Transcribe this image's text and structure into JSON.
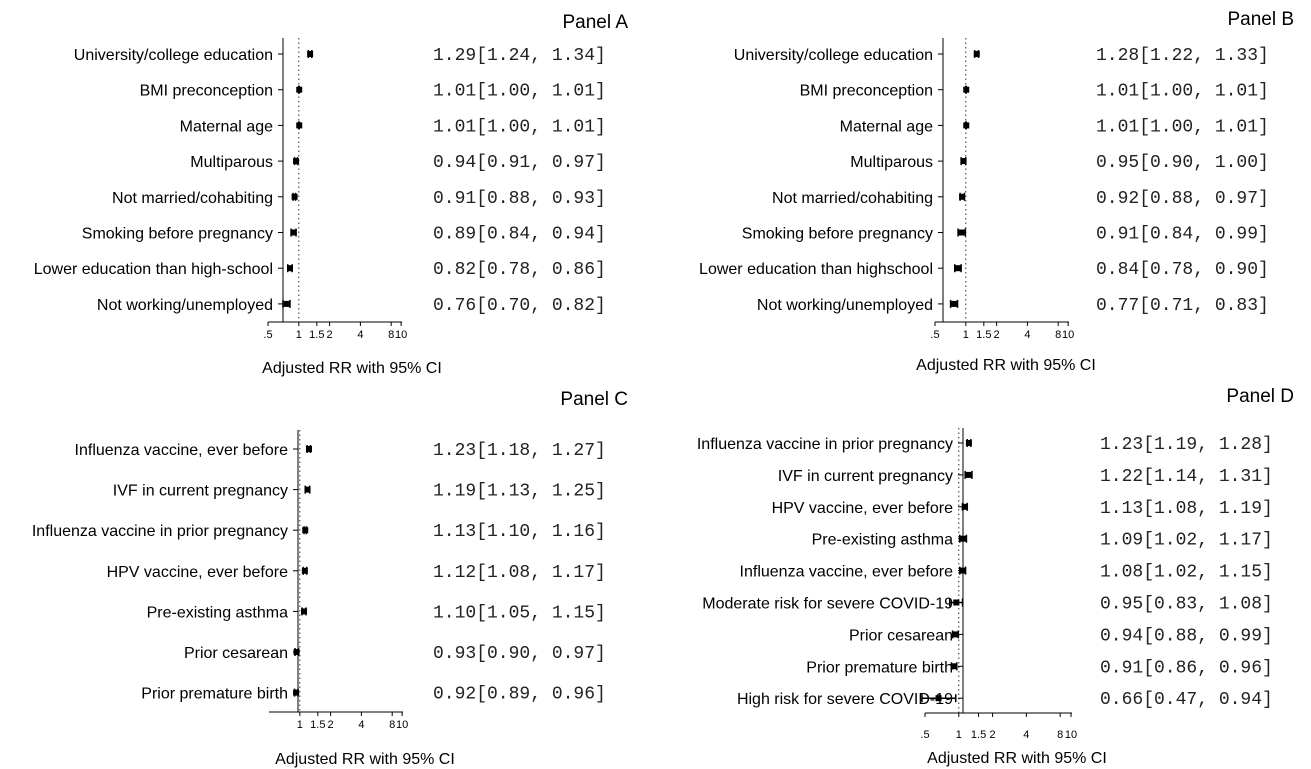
{
  "chart_data": [
    {
      "type": "forest",
      "title": "Panel A",
      "xlabel": "Adjusted RR with 95% CI",
      "xscale": "log",
      "xticks": [
        0.5,
        1,
        1.5,
        2,
        4,
        8,
        10
      ],
      "xtick_labels": [
        ".5",
        "1",
        "1.5",
        "2",
        "4",
        "8",
        "10"
      ],
      "reference_line": 1,
      "rows": [
        {
          "label": "University/college education",
          "rr": 1.29,
          "lo": 1.24,
          "hi": 1.34,
          "text": "1.29[1.24, 1.34]"
        },
        {
          "label": "BMI preconception",
          "rr": 1.01,
          "lo": 1.0,
          "hi": 1.01,
          "text": "1.01[1.00, 1.01]"
        },
        {
          "label": "Maternal age",
          "rr": 1.01,
          "lo": 1.0,
          "hi": 1.01,
          "text": "1.01[1.00, 1.01]"
        },
        {
          "label": "Multiparous",
          "rr": 0.94,
          "lo": 0.91,
          "hi": 0.97,
          "text": "0.94[0.91, 0.97]"
        },
        {
          "label": "Not married/cohabiting",
          "rr": 0.91,
          "lo": 0.88,
          "hi": 0.93,
          "text": "0.91[0.88, 0.93]"
        },
        {
          "label": "Smoking before pregnancy",
          "rr": 0.89,
          "lo": 0.84,
          "hi": 0.94,
          "text": "0.89[0.84, 0.94]"
        },
        {
          "label": "Lower education than high-school",
          "rr": 0.82,
          "lo": 0.78,
          "hi": 0.86,
          "text": "0.82[0.78, 0.86]"
        },
        {
          "label": "Not working/unemployed",
          "rr": 0.76,
          "lo": 0.7,
          "hi": 0.82,
          "text": "0.76[0.70, 0.82]"
        }
      ]
    },
    {
      "type": "forest",
      "title": "Panel B",
      "xlabel": "Adjusted RR with 95% CI",
      "xscale": "log",
      "xticks": [
        0.5,
        1,
        1.5,
        2,
        4,
        8,
        10
      ],
      "xtick_labels": [
        ".5",
        "1",
        "1.5",
        "2",
        "4",
        "8",
        "10"
      ],
      "reference_line": 1,
      "rows": [
        {
          "label": "University/college education",
          "rr": 1.28,
          "lo": 1.22,
          "hi": 1.33,
          "text": "1.28[1.22, 1.33]"
        },
        {
          "label": "BMI preconception",
          "rr": 1.01,
          "lo": 1.0,
          "hi": 1.01,
          "text": "1.01[1.00, 1.01]"
        },
        {
          "label": "Maternal age",
          "rr": 1.01,
          "lo": 1.0,
          "hi": 1.01,
          "text": "1.01[1.00, 1.01]"
        },
        {
          "label": "Multiparous",
          "rr": 0.95,
          "lo": 0.9,
          "hi": 1.0,
          "text": "0.95[0.90, 1.00]"
        },
        {
          "label": "Not married/cohabiting",
          "rr": 0.92,
          "lo": 0.88,
          "hi": 0.97,
          "text": "0.92[0.88, 0.97]"
        },
        {
          "label": "Smoking before pregnancy",
          "rr": 0.91,
          "lo": 0.84,
          "hi": 0.99,
          "text": "0.91[0.84, 0.99]"
        },
        {
          "label": "Lower education than highschool",
          "rr": 0.84,
          "lo": 0.78,
          "hi": 0.9,
          "text": "0.84[0.78, 0.90]"
        },
        {
          "label": "Not working/unemployed",
          "rr": 0.77,
          "lo": 0.71,
          "hi": 0.83,
          "text": "0.77[0.71, 0.83]"
        }
      ]
    },
    {
      "type": "forest",
      "title": "Panel C",
      "xlabel": "Adjusted RR with 95% CI",
      "xscale": "log",
      "xticks": [
        1,
        1.5,
        2,
        4,
        8,
        10
      ],
      "xtick_labels": [
        "1",
        "1.5",
        "2",
        "4",
        "8",
        "10"
      ],
      "reference_line": 1,
      "rows": [
        {
          "label": "Influenza vaccine, ever before",
          "rr": 1.23,
          "lo": 1.18,
          "hi": 1.27,
          "text": "1.23[1.18, 1.27]"
        },
        {
          "label": "IVF in current pregnancy",
          "rr": 1.19,
          "lo": 1.13,
          "hi": 1.25,
          "text": "1.19[1.13, 1.25]"
        },
        {
          "label": "Influenza vaccine in prior pregnancy",
          "rr": 1.13,
          "lo": 1.1,
          "hi": 1.16,
          "text": "1.13[1.10, 1.16]"
        },
        {
          "label": "HPV vaccine, ever before",
          "rr": 1.12,
          "lo": 1.08,
          "hi": 1.17,
          "text": "1.12[1.08, 1.17]"
        },
        {
          "label": "Pre-existing asthma",
          "rr": 1.1,
          "lo": 1.05,
          "hi": 1.15,
          "text": "1.10[1.05, 1.15]"
        },
        {
          "label": "Prior cesarean",
          "rr": 0.93,
          "lo": 0.9,
          "hi": 0.97,
          "text": "0.93[0.90, 0.97]"
        },
        {
          "label": "Prior premature birth",
          "rr": 0.92,
          "lo": 0.89,
          "hi": 0.96,
          "text": "0.92[0.89, 0.96]"
        }
      ]
    },
    {
      "type": "forest",
      "title": "Panel D",
      "xlabel": "Adjusted RR with 95% CI",
      "xscale": "log",
      "xticks": [
        0.5,
        1,
        1.5,
        2,
        4,
        8,
        10
      ],
      "xtick_labels": [
        ".5",
        "1",
        "1.5",
        "2",
        "4",
        "8",
        "10"
      ],
      "reference_line": 1,
      "rows": [
        {
          "label": "Influenza vaccine in prior pregnancy",
          "rr": 1.23,
          "lo": 1.19,
          "hi": 1.28,
          "text": "1.23[1.19, 1.28]"
        },
        {
          "label": "IVF in current pregnancy",
          "rr": 1.22,
          "lo": 1.14,
          "hi": 1.31,
          "text": "1.22[1.14, 1.31]"
        },
        {
          "label": "HPV vaccine, ever before",
          "rr": 1.13,
          "lo": 1.08,
          "hi": 1.19,
          "text": "1.13[1.08, 1.19]"
        },
        {
          "label": "Pre-existing asthma",
          "rr": 1.09,
          "lo": 1.02,
          "hi": 1.17,
          "text": "1.09[1.02, 1.17]"
        },
        {
          "label": "Influenza vaccine, ever before",
          "rr": 1.08,
          "lo": 1.02,
          "hi": 1.15,
          "text": "1.08[1.02, 1.15]"
        },
        {
          "label": "Moderate risk for severe COVID-19",
          "rr": 0.95,
          "lo": 0.83,
          "hi": 1.08,
          "text": "0.95[0.83, 1.08]"
        },
        {
          "label": "Prior cesarean",
          "rr": 0.94,
          "lo": 0.88,
          "hi": 0.99,
          "text": "0.94[0.88, 0.99]"
        },
        {
          "label": "Prior premature birth",
          "rr": 0.91,
          "lo": 0.86,
          "hi": 0.96,
          "text": "0.91[0.86, 0.96]"
        },
        {
          "label": "High risk for severe COVID-19",
          "rr": 0.66,
          "lo": 0.47,
          "hi": 0.94,
          "text": "0.66[0.47, 0.94]"
        }
      ]
    }
  ]
}
